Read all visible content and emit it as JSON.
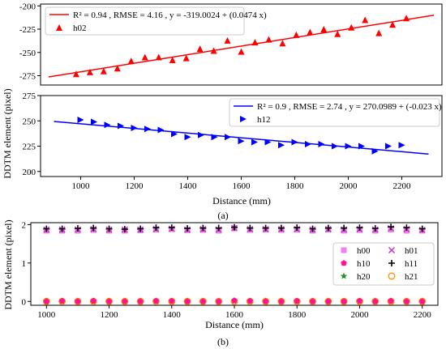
{
  "figure_labels": {
    "a": "(a)",
    "b": "(b)"
  },
  "shared_ylabel_a": "DDTM element (pixel)",
  "chart_data": [
    {
      "panel": "a-top",
      "type": "scatter",
      "xlim": [
        900,
        2300
      ],
      "ylim": [
        -285,
        -198
      ],
      "yticks": [
        -200,
        -225,
        -250,
        -275
      ],
      "xticks": [],
      "xlabel": "",
      "ylabel": "",
      "grid": false,
      "legend_position": "top-left",
      "color": "#ff0000",
      "series": [
        {
          "name": "h02",
          "marker": "triangle-up",
          "x": [
            1000,
            1050,
            1100,
            1150,
            1200,
            1250,
            1300,
            1350,
            1400,
            1450,
            1500,
            1550,
            1600,
            1650,
            1700,
            1750,
            1800,
            1850,
            1900,
            1950,
            2000,
            2050,
            2100,
            2150,
            2200
          ],
          "y": [
            -273,
            -271,
            -270,
            -267,
            -259,
            -255,
            -255,
            -258,
            -256,
            -246,
            -248,
            -237,
            -249,
            -239,
            -236,
            -240,
            -231,
            -228,
            -225,
            -230,
            -223,
            -215,
            -229,
            -220,
            -213
          ]
        }
      ],
      "fit": {
        "label": "R² = 0.94 , RMSE = 4.16 , y = -319.0024 + (0.0474 x)",
        "x0": 900,
        "x1": 2300,
        "intercept": -319.0024,
        "slope": 0.0474
      }
    },
    {
      "panel": "a-bottom",
      "type": "scatter",
      "xlim": [
        850,
        2350
      ],
      "ylim": [
        195,
        275
      ],
      "yticks": [
        200,
        225,
        250,
        275
      ],
      "xticks": [
        1000,
        1200,
        1400,
        1600,
        1800,
        2000,
        2200
      ],
      "xlabel": "Distance (mm)",
      "ylabel": "DDTM element (pixel)",
      "grid": false,
      "legend_position": "top-right",
      "color": "#0000ff",
      "series": [
        {
          "name": "h12",
          "marker": "triangle-right",
          "x": [
            1000,
            1050,
            1100,
            1150,
            1200,
            1250,
            1300,
            1350,
            1400,
            1450,
            1500,
            1550,
            1600,
            1650,
            1700,
            1750,
            1800,
            1850,
            1900,
            1950,
            2000,
            2050,
            2100,
            2150,
            2200
          ],
          "y": [
            251,
            249,
            246,
            245,
            243,
            242,
            241,
            237,
            234,
            236,
            234,
            234,
            230,
            229,
            229,
            226,
            229,
            227,
            227,
            225,
            225,
            225,
            220,
            225,
            226
          ]
        }
      ],
      "fit": {
        "label": "R² = 0.9 , RMSE = 2.74 , y = 270.0989 + (-0.023 x)",
        "x0": 900,
        "x1": 2300,
        "intercept": 270.0989,
        "slope": -0.023
      }
    },
    {
      "panel": "b",
      "type": "scatter",
      "xlim": [
        950,
        2250
      ],
      "ylim": [
        -0.1,
        2.05
      ],
      "yticks": [
        0,
        1,
        2
      ],
      "xticks": [
        1000,
        1200,
        1400,
        1600,
        1800,
        2000,
        2200
      ],
      "xlabel": "Distance (mm)",
      "ylabel": "DDTM element (pixel)",
      "grid": false,
      "legend_position": "bottom-right",
      "x": [
        1000,
        1050,
        1100,
        1150,
        1200,
        1250,
        1300,
        1350,
        1400,
        1450,
        1500,
        1550,
        1600,
        1650,
        1700,
        1750,
        1800,
        1850,
        1900,
        1950,
        2000,
        2050,
        2100,
        2150,
        2200
      ],
      "series": [
        {
          "name": "h00",
          "marker": "square",
          "color": "#ee82ee",
          "values": [
            1.84,
            1.84,
            1.84,
            1.86,
            1.84,
            1.84,
            1.85,
            1.87,
            1.88,
            1.85,
            1.86,
            1.84,
            1.9,
            1.86,
            1.87,
            1.86,
            1.87,
            1.84,
            1.87,
            1.84,
            1.86,
            1.84,
            1.87,
            1.84,
            1.84
          ]
        },
        {
          "name": "h01",
          "marker": "x",
          "color": "#cc33cc",
          "values": [
            1.87,
            1.87,
            1.87,
            1.88,
            1.87,
            1.87,
            1.87,
            1.88,
            1.89,
            1.87,
            1.88,
            1.87,
            1.91,
            1.88,
            1.88,
            1.88,
            1.88,
            1.87,
            1.88,
            1.87,
            1.88,
            1.87,
            1.9,
            1.88,
            1.86
          ]
        },
        {
          "name": "h10",
          "marker": "pentagon",
          "color": "#ff1493",
          "values": [
            0.0,
            0.01,
            0.0,
            0.01,
            0.0,
            0.0,
            0.0,
            0.01,
            0.01,
            0.0,
            0.0,
            0.0,
            0.02,
            0.01,
            0.0,
            0.0,
            0.01,
            0.0,
            0.0,
            0.0,
            0.01,
            0.0,
            0.01,
            0.0,
            0.0
          ]
        },
        {
          "name": "h11",
          "marker": "plus",
          "color": "#000000",
          "values": [
            1.89,
            1.89,
            1.9,
            1.91,
            1.89,
            1.88,
            1.89,
            1.92,
            1.92,
            1.9,
            1.91,
            1.91,
            1.93,
            1.91,
            1.91,
            1.91,
            1.92,
            1.89,
            1.91,
            1.91,
            1.92,
            1.9,
            1.94,
            1.92,
            1.89
          ]
        },
        {
          "name": "h20",
          "marker": "star",
          "color": "#228b22",
          "values": [
            0.0,
            0.0,
            0.0,
            0.0,
            0.0,
            0.0,
            0.0,
            0.0,
            0.0,
            0.0,
            0.0,
            0.0,
            0.0,
            0.0,
            0.0,
            0.0,
            0.0,
            0.0,
            0.0,
            0.0,
            0.0,
            0.0,
            0.0,
            0.0,
            0.0
          ]
        },
        {
          "name": "h21",
          "marker": "circle",
          "color": "#ff8c00",
          "values": [
            0.0,
            0.0,
            0.0,
            0.0,
            0.0,
            0.0,
            0.0,
            0.0,
            0.0,
            0.0,
            0.0,
            0.0,
            0.0,
            0.0,
            0.0,
            0.0,
            0.0,
            0.0,
            0.0,
            0.0,
            0.0,
            0.0,
            0.0,
            0.0,
            0.0
          ]
        }
      ]
    }
  ]
}
